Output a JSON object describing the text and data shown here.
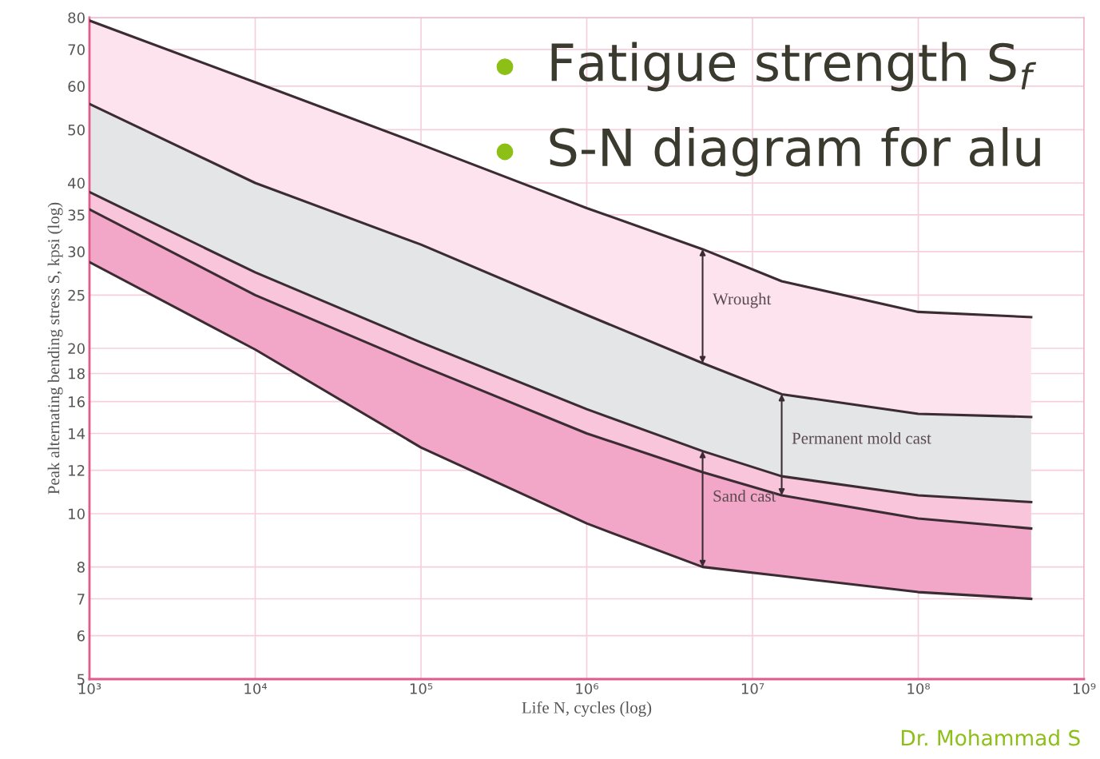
{
  "chart_data": {
    "type": "line",
    "xlabel": "Life N, cycles (log)",
    "ylabel": "Peak alternating bending stress S, kpsi (log)",
    "log": "xy",
    "grid": true,
    "marker": "none",
    "line_style": "solid",
    "xlim": [
      1000,
      1000000000
    ],
    "xticks": [
      {
        "value": 1000,
        "label": "10³"
      },
      {
        "value": 10000,
        "label": "10⁴"
      },
      {
        "value": 100000,
        "label": "10⁵"
      },
      {
        "value": 1000000,
        "label": "10⁶"
      },
      {
        "value": 10000000,
        "label": "10⁷"
      },
      {
        "value": 100000000,
        "label": "10⁸"
      },
      {
        "value": 1000000000,
        "label": "10⁹"
      }
    ],
    "ylim": [
      5,
      80
    ],
    "yticks": [
      5,
      6,
      7,
      8,
      10,
      12,
      14,
      16,
      18,
      20,
      25,
      30,
      35,
      40,
      50,
      60,
      70,
      80
    ],
    "x": [
      1000,
      10000,
      100000,
      1000000,
      5000000,
      15000000,
      100000000,
      480000000
    ],
    "series": [
      {
        "type": "area",
        "color": "#fde3ee",
        "values": [
          79,
          61,
          47,
          36,
          30.3,
          26.5,
          23.3,
          22.8
        ]
      },
      {
        "type": "area",
        "color": "#e3e5e7",
        "values": [
          55.7,
          40,
          30.9,
          23,
          18.8,
          16.5,
          15.2,
          15.0
        ]
      },
      {
        "type": "area",
        "color": "#f8c5da",
        "values": [
          38.5,
          27.5,
          20.5,
          15.5,
          13.0,
          11.7,
          10.8,
          10.5
        ]
      },
      {
        "type": "area",
        "color": "#f2a7c8",
        "values": [
          35.8,
          25,
          18.6,
          14,
          11.9,
          10.8,
          9.8,
          9.4
        ]
      },
      {
        "color": "#3b2c33",
        "values": [
          28.7,
          19.9,
          13.2,
          9.6,
          8.0,
          7.7,
          7.2,
          7.0
        ]
      }
    ],
    "annotations": [
      "Wrought",
      "Permanent mold cast",
      "Sand cast",
      "Fatigue strength S$_{f}$",
      "S-N diagram for alu",
      "Dr. Mohammad S"
    ]
  }
}
